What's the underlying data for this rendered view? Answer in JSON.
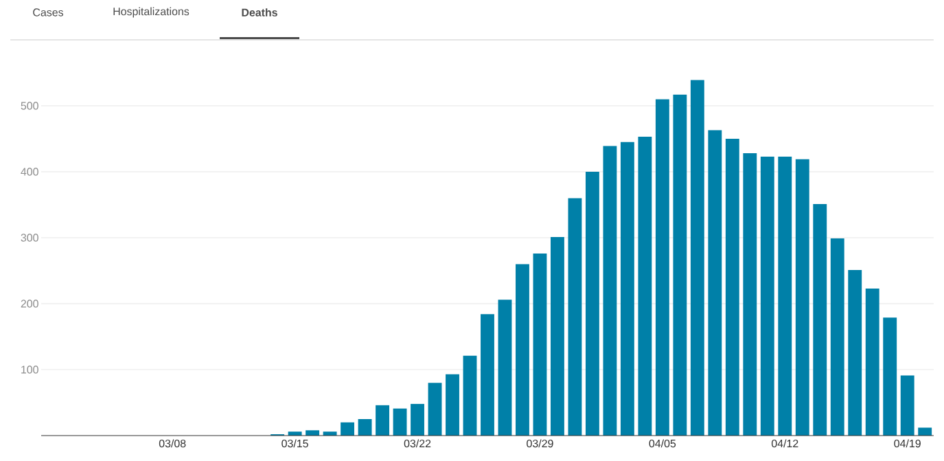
{
  "chart_data": {
    "type": "bar",
    "annotations": [
      "Cases",
      "Hospitalizations",
      "**Deaths**"
    ],
    "categories": [
      null,
      null,
      null,
      null,
      null,
      null,
      null,
      "03/08",
      null,
      null,
      null,
      null,
      null,
      null,
      "03/15",
      null,
      null,
      null,
      null,
      null,
      null,
      "03/22",
      null,
      null,
      null,
      null,
      null,
      null,
      "03/29",
      null,
      null,
      null,
      null,
      null,
      null,
      "04/05",
      null,
      null,
      null,
      null,
      null,
      null,
      "04/12",
      null,
      null,
      null,
      null,
      null,
      null,
      "04/19",
      null
    ],
    "values": [
      null,
      null,
      null,
      null,
      null,
      null,
      null,
      null,
      null,
      null,
      null,
      null,
      null,
      2,
      6,
      8,
      6,
      20,
      25,
      46,
      41,
      48,
      80,
      93,
      121,
      184,
      206,
      260,
      276,
      301,
      360,
      400,
      439,
      445,
      453,
      510,
      517,
      539,
      463,
      450,
      428,
      423,
      423,
      419,
      351,
      299,
      251,
      223,
      179,
      91,
      12
    ],
    "color": "#0080a8",
    "ylim": [
      0,
      600
    ],
    "yticks": [
      100,
      200,
      300,
      400,
      500
    ],
    "grid": "y"
  }
}
